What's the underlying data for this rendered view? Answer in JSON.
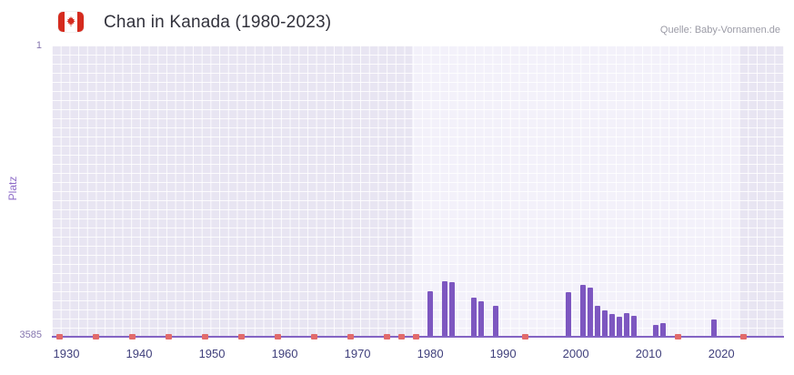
{
  "header": {
    "title": "Chan in Kanada (1980-2023)",
    "source": "Quelle: Baby-Vornamen.de"
  },
  "chart": {
    "y_axis_label": "Platz",
    "y_tick_top": "1",
    "y_tick_bottom": "3585"
  },
  "colors": {
    "bar": "#7d57c0",
    "unranked": "#e16a6a",
    "axis_line": "#8464c4",
    "plot_bg": "#e8e5f2",
    "highlight_band": "#f3f1fa",
    "flag_red": "#d52b1e"
  },
  "chart_data": {
    "type": "bar",
    "title": "Chan in Kanada (1980-2023)",
    "xlabel": "",
    "ylabel": "Platz",
    "y_inverted": true,
    "x_domain": [
      1928,
      2028.6
    ],
    "y_domain": [
      1,
      3585
    ],
    "x_ticks": [
      1930,
      1940,
      1950,
      1960,
      1970,
      1980,
      1990,
      2000,
      2010,
      2020
    ],
    "highlight_band": [
      1977.5,
      2022.5
    ],
    "points": [
      {
        "year": 1980,
        "rank": 3025
      },
      {
        "year": 1982,
        "rank": 2900
      },
      {
        "year": 1983,
        "rank": 2915
      },
      {
        "year": 1986,
        "rank": 3100
      },
      {
        "year": 1987,
        "rank": 3145
      },
      {
        "year": 1989,
        "rank": 3200
      },
      {
        "year": 1999,
        "rank": 3040
      },
      {
        "year": 2001,
        "rank": 2950
      },
      {
        "year": 2002,
        "rank": 2980
      },
      {
        "year": 2003,
        "rank": 3200
      },
      {
        "year": 2004,
        "rank": 3260
      },
      {
        "year": 2005,
        "rank": 3305
      },
      {
        "year": 2006,
        "rank": 3340
      },
      {
        "year": 2007,
        "rank": 3295
      },
      {
        "year": 2008,
        "rank": 3330
      },
      {
        "year": 2011,
        "rank": 3440
      },
      {
        "year": 2012,
        "rank": 3420
      },
      {
        "year": 2019,
        "rank": 3370
      }
    ],
    "unranked_years": [
      1929,
      1934,
      1939,
      1944,
      1949,
      1954,
      1959,
      1964,
      1969,
      1974,
      1976,
      1978,
      1993,
      2014,
      2023
    ]
  }
}
